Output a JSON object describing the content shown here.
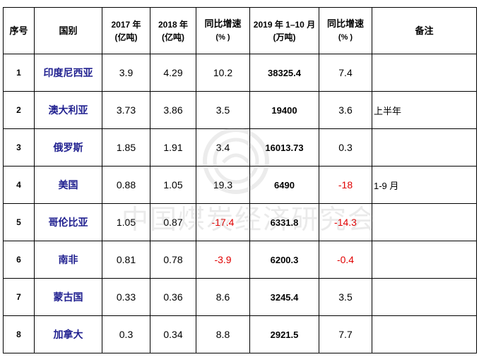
{
  "table": {
    "headers": {
      "index": "序号",
      "country": "国别",
      "y2017_title": "2017 年",
      "y2017_unit": "(亿吨)",
      "y2018_title": "2018 年",
      "y2018_unit": "(亿吨)",
      "yoy1_title": "同比增速",
      "yoy1_unit": "(% )",
      "y2019_title": "2019 年 1–10 月",
      "y2019_unit": "(万吨)",
      "yoy2_title": "同比增速",
      "yoy2_unit": "(% )",
      "note": "备注"
    },
    "rows": [
      {
        "index": "1",
        "country": "印度尼西亚",
        "y2017": "3.9",
        "y2018": "4.29",
        "yoy1": "10.2",
        "y2019": "38325.4",
        "yoy2": "7.4",
        "note": ""
      },
      {
        "index": "2",
        "country": "澳大利亚",
        "y2017": "3.73",
        "y2018": "3.86",
        "yoy1": "3.5",
        "y2019": "19400",
        "yoy2": "3.6",
        "note": "上半年"
      },
      {
        "index": "3",
        "country": "俄罗斯",
        "y2017": "1.85",
        "y2018": "1.91",
        "yoy1": "3.4",
        "y2019": "16013.73",
        "yoy2": "0.3",
        "note": ""
      },
      {
        "index": "4",
        "country": "美国",
        "y2017": "0.88",
        "y2018": "1.05",
        "yoy1": "19.3",
        "y2019": "6490",
        "yoy2": "-18",
        "note": "1-9 月"
      },
      {
        "index": "5",
        "country": "哥伦比亚",
        "y2017": "1.05",
        "y2018": "0.87",
        "yoy1": "-17.4",
        "y2019": "6331.8",
        "yoy2": "-14.3",
        "note": ""
      },
      {
        "index": "6",
        "country": "南非",
        "y2017": "0.81",
        "y2018": "0.78",
        "yoy1": "-3.9",
        "y2019": "6200.3",
        "yoy2": "-0.4",
        "note": ""
      },
      {
        "index": "7",
        "country": "蒙古国",
        "y2017": "0.33",
        "y2018": "0.36",
        "yoy1": "8.6",
        "y2019": "3245.4",
        "yoy2": "3.5",
        "note": ""
      },
      {
        "index": "8",
        "country": "加拿大",
        "y2017": "0.3",
        "y2018": "0.34",
        "yoy1": "8.8",
        "y2019": "2921.5",
        "yoy2": "7.7",
        "note": ""
      }
    ]
  },
  "watermark": {
    "text": "中国煤炭经济研究会"
  },
  "colors": {
    "country_text": "#1f1f8f",
    "negative_text": "#e00000",
    "border": "#000000"
  }
}
